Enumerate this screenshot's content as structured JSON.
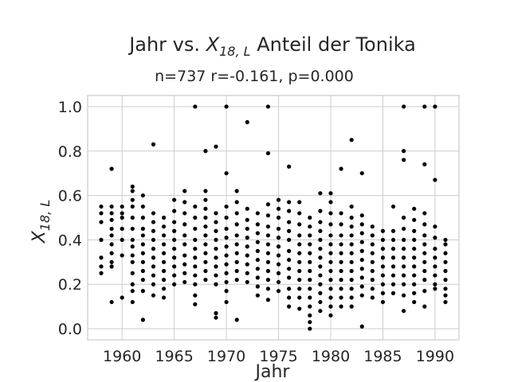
{
  "chart_data": {
    "type": "scatter",
    "title_prefix": "Jahr vs.",
    "title_symbol": "X",
    "title_subscript": "18, L",
    "title_suffix": "Anteil der Tonika",
    "subtitle": "n=737 r=-0.161, p=0.000",
    "xlabel": "Jahr",
    "ylabel_symbol": "X",
    "ylabel_subscript": "18, L",
    "xlim": [
      1956.7,
      1992.3
    ],
    "ylim": [
      -0.05,
      1.05
    ],
    "xticks": [
      1960,
      1965,
      1970,
      1975,
      1980,
      1985,
      1990
    ],
    "xtick_labels": [
      "1960",
      "1965",
      "1970",
      "1975",
      "1980",
      "1985",
      "1990"
    ],
    "yticks": [
      0.0,
      0.2,
      0.4,
      0.6,
      0.8,
      1.0
    ],
    "ytick_labels": [
      "0.0",
      "0.2",
      "0.4",
      "0.6",
      "0.8",
      "1.0"
    ],
    "grid": true,
    "marker_color": "#000000",
    "grid_color": "#cccccc",
    "text_color": "#262626",
    "points": [
      [
        1958,
        0.55
      ],
      [
        1958,
        0.52
      ],
      [
        1958,
        0.48
      ],
      [
        1958,
        0.4
      ],
      [
        1958,
        0.32
      ],
      [
        1958,
        0.28
      ],
      [
        1958,
        0.25
      ],
      [
        1959,
        0.72
      ],
      [
        1959,
        0.55
      ],
      [
        1959,
        0.52
      ],
      [
        1959,
        0.49
      ],
      [
        1959,
        0.45
      ],
      [
        1959,
        0.42
      ],
      [
        1959,
        0.38
      ],
      [
        1959,
        0.34
      ],
      [
        1959,
        0.3
      ],
      [
        1959,
        0.28
      ],
      [
        1959,
        0.12
      ],
      [
        1960,
        0.55
      ],
      [
        1960,
        0.52
      ],
      [
        1960,
        0.5
      ],
      [
        1960,
        0.45
      ],
      [
        1960,
        0.4
      ],
      [
        1960,
        0.33
      ],
      [
        1960,
        0.14
      ],
      [
        1961,
        0.64
      ],
      [
        1961,
        0.62
      ],
      [
        1961,
        0.58
      ],
      [
        1961,
        0.55
      ],
      [
        1961,
        0.5
      ],
      [
        1961,
        0.45
      ],
      [
        1961,
        0.4
      ],
      [
        1961,
        0.37
      ],
      [
        1961,
        0.33
      ],
      [
        1961,
        0.3
      ],
      [
        1961,
        0.25
      ],
      [
        1961,
        0.2
      ],
      [
        1961,
        0.17
      ],
      [
        1961,
        0.12
      ],
      [
        1962,
        0.6
      ],
      [
        1962,
        0.55
      ],
      [
        1962,
        0.5
      ],
      [
        1962,
        0.45
      ],
      [
        1962,
        0.42
      ],
      [
        1962,
        0.38
      ],
      [
        1962,
        0.34
      ],
      [
        1962,
        0.3
      ],
      [
        1962,
        0.26
      ],
      [
        1962,
        0.22
      ],
      [
        1962,
        0.17
      ],
      [
        1962,
        0.04
      ],
      [
        1963,
        0.83
      ],
      [
        1963,
        0.52
      ],
      [
        1963,
        0.48
      ],
      [
        1963,
        0.44
      ],
      [
        1963,
        0.4
      ],
      [
        1963,
        0.36
      ],
      [
        1963,
        0.32
      ],
      [
        1963,
        0.28
      ],
      [
        1963,
        0.24
      ],
      [
        1963,
        0.2
      ],
      [
        1963,
        0.15
      ],
      [
        1964,
        0.5
      ],
      [
        1964,
        0.46
      ],
      [
        1964,
        0.42
      ],
      [
        1964,
        0.38
      ],
      [
        1964,
        0.34
      ],
      [
        1964,
        0.3
      ],
      [
        1964,
        0.26
      ],
      [
        1964,
        0.22
      ],
      [
        1964,
        0.18
      ],
      [
        1964,
        0.14
      ],
      [
        1965,
        0.58
      ],
      [
        1965,
        0.53
      ],
      [
        1965,
        0.48
      ],
      [
        1965,
        0.44
      ],
      [
        1965,
        0.4
      ],
      [
        1965,
        0.36
      ],
      [
        1965,
        0.32
      ],
      [
        1965,
        0.28
      ],
      [
        1965,
        0.24
      ],
      [
        1965,
        0.2
      ],
      [
        1966,
        0.62
      ],
      [
        1966,
        0.57
      ],
      [
        1966,
        0.52
      ],
      [
        1966,
        0.47
      ],
      [
        1966,
        0.42
      ],
      [
        1966,
        0.38
      ],
      [
        1966,
        0.33
      ],
      [
        1966,
        0.29
      ],
      [
        1966,
        0.25
      ],
      [
        1966,
        0.21
      ],
      [
        1967,
        1.0
      ],
      [
        1967,
        0.55
      ],
      [
        1967,
        0.5
      ],
      [
        1967,
        0.45
      ],
      [
        1967,
        0.4
      ],
      [
        1967,
        0.36
      ],
      [
        1967,
        0.32
      ],
      [
        1967,
        0.28
      ],
      [
        1967,
        0.24
      ],
      [
        1967,
        0.2
      ],
      [
        1967,
        0.15
      ],
      [
        1967,
        0.11
      ],
      [
        1968,
        0.8
      ],
      [
        1968,
        0.62
      ],
      [
        1968,
        0.58
      ],
      [
        1968,
        0.54
      ],
      [
        1968,
        0.5
      ],
      [
        1968,
        0.46
      ],
      [
        1968,
        0.42
      ],
      [
        1968,
        0.38
      ],
      [
        1968,
        0.34
      ],
      [
        1968,
        0.3
      ],
      [
        1968,
        0.26
      ],
      [
        1968,
        0.22
      ],
      [
        1969,
        0.82
      ],
      [
        1969,
        0.52
      ],
      [
        1969,
        0.48
      ],
      [
        1969,
        0.44
      ],
      [
        1969,
        0.4
      ],
      [
        1969,
        0.36
      ],
      [
        1969,
        0.32
      ],
      [
        1969,
        0.28
      ],
      [
        1969,
        0.24
      ],
      [
        1969,
        0.2
      ],
      [
        1969,
        0.07
      ],
      [
        1969,
        0.05
      ],
      [
        1970,
        1.0
      ],
      [
        1970,
        0.7
      ],
      [
        1970,
        0.55
      ],
      [
        1970,
        0.5
      ],
      [
        1970,
        0.45
      ],
      [
        1970,
        0.41
      ],
      [
        1970,
        0.37
      ],
      [
        1970,
        0.33
      ],
      [
        1970,
        0.29
      ],
      [
        1970,
        0.25
      ],
      [
        1970,
        0.21
      ],
      [
        1970,
        0.17
      ],
      [
        1970,
        0.12
      ],
      [
        1971,
        0.62
      ],
      [
        1971,
        0.57
      ],
      [
        1971,
        0.52
      ],
      [
        1971,
        0.47
      ],
      [
        1971,
        0.42
      ],
      [
        1971,
        0.38
      ],
      [
        1971,
        0.34
      ],
      [
        1971,
        0.3
      ],
      [
        1971,
        0.26
      ],
      [
        1971,
        0.22
      ],
      [
        1971,
        0.04
      ],
      [
        1972,
        0.93
      ],
      [
        1972,
        0.54
      ],
      [
        1972,
        0.49
      ],
      [
        1972,
        0.45
      ],
      [
        1972,
        0.41
      ],
      [
        1972,
        0.37
      ],
      [
        1972,
        0.33
      ],
      [
        1972,
        0.29
      ],
      [
        1972,
        0.25
      ],
      [
        1972,
        0.21
      ],
      [
        1973,
        0.52
      ],
      [
        1973,
        0.47
      ],
      [
        1973,
        0.43
      ],
      [
        1973,
        0.39
      ],
      [
        1973,
        0.35
      ],
      [
        1973,
        0.31
      ],
      [
        1973,
        0.27
      ],
      [
        1973,
        0.23
      ],
      [
        1973,
        0.19
      ],
      [
        1973,
        0.15
      ],
      [
        1974,
        1.0
      ],
      [
        1974,
        0.79
      ],
      [
        1974,
        0.56
      ],
      [
        1974,
        0.51
      ],
      [
        1974,
        0.46
      ],
      [
        1974,
        0.42
      ],
      [
        1974,
        0.38
      ],
      [
        1974,
        0.34
      ],
      [
        1974,
        0.3
      ],
      [
        1974,
        0.26
      ],
      [
        1974,
        0.22
      ],
      [
        1974,
        0.18
      ],
      [
        1974,
        0.13
      ],
      [
        1975,
        0.58
      ],
      [
        1975,
        0.54
      ],
      [
        1975,
        0.5
      ],
      [
        1975,
        0.45
      ],
      [
        1975,
        0.41
      ],
      [
        1975,
        0.37
      ],
      [
        1975,
        0.33
      ],
      [
        1975,
        0.29
      ],
      [
        1975,
        0.25
      ],
      [
        1975,
        0.21
      ],
      [
        1975,
        0.17
      ],
      [
        1976,
        0.73
      ],
      [
        1976,
        0.57
      ],
      [
        1976,
        0.53
      ],
      [
        1976,
        0.48
      ],
      [
        1976,
        0.44
      ],
      [
        1976,
        0.4
      ],
      [
        1976,
        0.35
      ],
      [
        1976,
        0.31
      ],
      [
        1976,
        0.27
      ],
      [
        1976,
        0.23
      ],
      [
        1976,
        0.18
      ],
      [
        1976,
        0.14
      ],
      [
        1976,
        0.1
      ],
      [
        1977,
        0.57
      ],
      [
        1977,
        0.52
      ],
      [
        1977,
        0.47
      ],
      [
        1977,
        0.42
      ],
      [
        1977,
        0.38
      ],
      [
        1977,
        0.34
      ],
      [
        1977,
        0.3
      ],
      [
        1977,
        0.26
      ],
      [
        1977,
        0.22
      ],
      [
        1977,
        0.18
      ],
      [
        1977,
        0.14
      ],
      [
        1977,
        0.09
      ],
      [
        1978,
        0.5
      ],
      [
        1978,
        0.46
      ],
      [
        1978,
        0.42
      ],
      [
        1978,
        0.38
      ],
      [
        1978,
        0.34
      ],
      [
        1978,
        0.3
      ],
      [
        1978,
        0.26
      ],
      [
        1978,
        0.22
      ],
      [
        1978,
        0.18
      ],
      [
        1978,
        0.14
      ],
      [
        1978,
        0.1
      ],
      [
        1978,
        0.06
      ],
      [
        1978,
        0.03
      ],
      [
        1978,
        0.0
      ],
      [
        1979,
        0.61
      ],
      [
        1979,
        0.53
      ],
      [
        1979,
        0.48
      ],
      [
        1979,
        0.44
      ],
      [
        1979,
        0.4
      ],
      [
        1979,
        0.36
      ],
      [
        1979,
        0.32
      ],
      [
        1979,
        0.28
      ],
      [
        1979,
        0.24
      ],
      [
        1979,
        0.2
      ],
      [
        1979,
        0.16
      ],
      [
        1979,
        0.12
      ],
      [
        1979,
        0.08
      ],
      [
        1980,
        0.61
      ],
      [
        1980,
        0.57
      ],
      [
        1980,
        0.52
      ],
      [
        1980,
        0.47
      ],
      [
        1980,
        0.42
      ],
      [
        1980,
        0.38
      ],
      [
        1980,
        0.34
      ],
      [
        1980,
        0.3
      ],
      [
        1980,
        0.26
      ],
      [
        1980,
        0.22
      ],
      [
        1980,
        0.18
      ],
      [
        1980,
        0.14
      ],
      [
        1980,
        0.1
      ],
      [
        1980,
        0.06
      ],
      [
        1981,
        0.72
      ],
      [
        1981,
        0.52
      ],
      [
        1981,
        0.47
      ],
      [
        1981,
        0.42
      ],
      [
        1981,
        0.38
      ],
      [
        1981,
        0.34
      ],
      [
        1981,
        0.3
      ],
      [
        1981,
        0.26
      ],
      [
        1981,
        0.22
      ],
      [
        1981,
        0.18
      ],
      [
        1981,
        0.14
      ],
      [
        1981,
        0.1
      ],
      [
        1982,
        0.85
      ],
      [
        1982,
        0.55
      ],
      [
        1982,
        0.5
      ],
      [
        1982,
        0.46
      ],
      [
        1982,
        0.42
      ],
      [
        1982,
        0.38
      ],
      [
        1982,
        0.34
      ],
      [
        1982,
        0.3
      ],
      [
        1982,
        0.26
      ],
      [
        1982,
        0.22
      ],
      [
        1982,
        0.18
      ],
      [
        1982,
        0.14
      ],
      [
        1982,
        0.1
      ],
      [
        1983,
        0.7
      ],
      [
        1983,
        0.51
      ],
      [
        1983,
        0.47
      ],
      [
        1983,
        0.43
      ],
      [
        1983,
        0.39
      ],
      [
        1983,
        0.35
      ],
      [
        1983,
        0.31
      ],
      [
        1983,
        0.27
      ],
      [
        1983,
        0.23
      ],
      [
        1983,
        0.19
      ],
      [
        1983,
        0.15
      ],
      [
        1983,
        0.01
      ],
      [
        1984,
        0.46
      ],
      [
        1984,
        0.42
      ],
      [
        1984,
        0.38
      ],
      [
        1984,
        0.34
      ],
      [
        1984,
        0.3
      ],
      [
        1984,
        0.26
      ],
      [
        1984,
        0.22
      ],
      [
        1984,
        0.18
      ],
      [
        1984,
        0.14
      ],
      [
        1985,
        0.44
      ],
      [
        1985,
        0.4
      ],
      [
        1985,
        0.36
      ],
      [
        1985,
        0.32
      ],
      [
        1985,
        0.28
      ],
      [
        1985,
        0.24
      ],
      [
        1985,
        0.2
      ],
      [
        1985,
        0.16
      ],
      [
        1985,
        0.12
      ],
      [
        1986,
        0.55
      ],
      [
        1986,
        0.44
      ],
      [
        1986,
        0.4
      ],
      [
        1986,
        0.36
      ],
      [
        1986,
        0.32
      ],
      [
        1986,
        0.28
      ],
      [
        1986,
        0.24
      ],
      [
        1986,
        0.2
      ],
      [
        1986,
        0.16
      ],
      [
        1987,
        1.0
      ],
      [
        1987,
        0.8
      ],
      [
        1987,
        0.76
      ],
      [
        1987,
        0.5
      ],
      [
        1987,
        0.45
      ],
      [
        1987,
        0.4
      ],
      [
        1987,
        0.36
      ],
      [
        1987,
        0.32
      ],
      [
        1987,
        0.28
      ],
      [
        1987,
        0.24
      ],
      [
        1987,
        0.2
      ],
      [
        1987,
        0.15
      ],
      [
        1987,
        0.08
      ],
      [
        1988,
        0.54
      ],
      [
        1988,
        0.49
      ],
      [
        1988,
        0.44
      ],
      [
        1988,
        0.4
      ],
      [
        1988,
        0.36
      ],
      [
        1988,
        0.32
      ],
      [
        1988,
        0.28
      ],
      [
        1988,
        0.24
      ],
      [
        1988,
        0.2
      ],
      [
        1988,
        0.16
      ],
      [
        1988,
        0.12
      ],
      [
        1989,
        1.0
      ],
      [
        1989,
        0.74
      ],
      [
        1989,
        0.52
      ],
      [
        1989,
        0.47
      ],
      [
        1989,
        0.42
      ],
      [
        1989,
        0.38
      ],
      [
        1989,
        0.34
      ],
      [
        1989,
        0.3
      ],
      [
        1989,
        0.26
      ],
      [
        1989,
        0.22
      ],
      [
        1989,
        0.17
      ],
      [
        1989,
        0.1
      ],
      [
        1990,
        1.0
      ],
      [
        1990,
        0.67
      ],
      [
        1990,
        0.46
      ],
      [
        1990,
        0.41
      ],
      [
        1990,
        0.36
      ],
      [
        1990,
        0.32
      ],
      [
        1990,
        0.28
      ],
      [
        1990,
        0.24
      ],
      [
        1990,
        0.2
      ],
      [
        1990,
        0.18
      ],
      [
        1991,
        0.4
      ],
      [
        1991,
        0.38
      ],
      [
        1991,
        0.34
      ],
      [
        1991,
        0.3
      ],
      [
        1991,
        0.26
      ],
      [
        1991,
        0.22
      ],
      [
        1991,
        0.18
      ],
      [
        1991,
        0.15
      ],
      [
        1991,
        0.12
      ]
    ]
  }
}
